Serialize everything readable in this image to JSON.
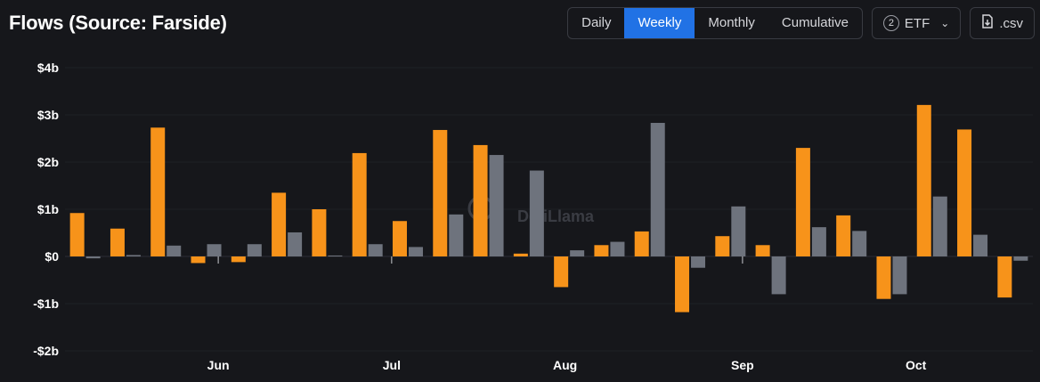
{
  "header": {
    "title": "Flows (Source: Farside)",
    "tabs": [
      {
        "label": "Daily",
        "active": false
      },
      {
        "label": "Weekly",
        "active": true
      },
      {
        "label": "Monthly",
        "active": false
      },
      {
        "label": "Cumulative",
        "active": false
      }
    ],
    "etf_count": "2",
    "etf_label": "ETF",
    "csv_label": ".csv"
  },
  "watermark": "DefiLlama",
  "colors": {
    "orange": "#f7931a",
    "gray": "#6e737d",
    "accent": "#2172e5"
  },
  "chart_data": {
    "type": "bar",
    "title": "Flows (Source: Farside)",
    "y_tick_labels": [
      "$4b",
      "$3b",
      "$2b",
      "$1b",
      "$0",
      "-$1b",
      "-$2b"
    ],
    "y_ticks": [
      4,
      3,
      2,
      1,
      0,
      -1,
      -2
    ],
    "ylim": [
      -2,
      4
    ],
    "ylabel_unit": "billions USD",
    "x_labels": [
      {
        "label": "Jun",
        "week_index": 3.3
      },
      {
        "label": "Jul",
        "week_index": 7.6
      },
      {
        "label": "Aug",
        "week_index": 11.9
      },
      {
        "label": "Sep",
        "week_index": 16.3
      },
      {
        "label": "Oct",
        "week_index": 20.6
      }
    ],
    "x_tick_marks": [
      3.3,
      7.6,
      16.3
    ],
    "series": [
      {
        "color": "#f7931a",
        "values": [
          0.92,
          0.59,
          2.73,
          -0.14,
          -0.12,
          1.35,
          1.0,
          2.19,
          0.75,
          2.68,
          2.36,
          0.06,
          -0.65,
          0.24,
          0.53,
          -1.18,
          0.43,
          0.24,
          2.3,
          0.87,
          -0.9,
          3.21,
          2.69,
          -0.87
        ]
      },
      {
        "color": "#6e737d",
        "values": [
          -0.04,
          0.03,
          0.23,
          0.26,
          0.26,
          0.51,
          0.02,
          0.26,
          0.2,
          0.89,
          2.15,
          1.82,
          0.13,
          0.31,
          2.83,
          -0.24,
          1.06,
          -0.8,
          0.62,
          0.54,
          -0.8,
          1.27,
          0.46,
          -0.09
        ]
      }
    ],
    "grid": true,
    "legend": "none"
  }
}
